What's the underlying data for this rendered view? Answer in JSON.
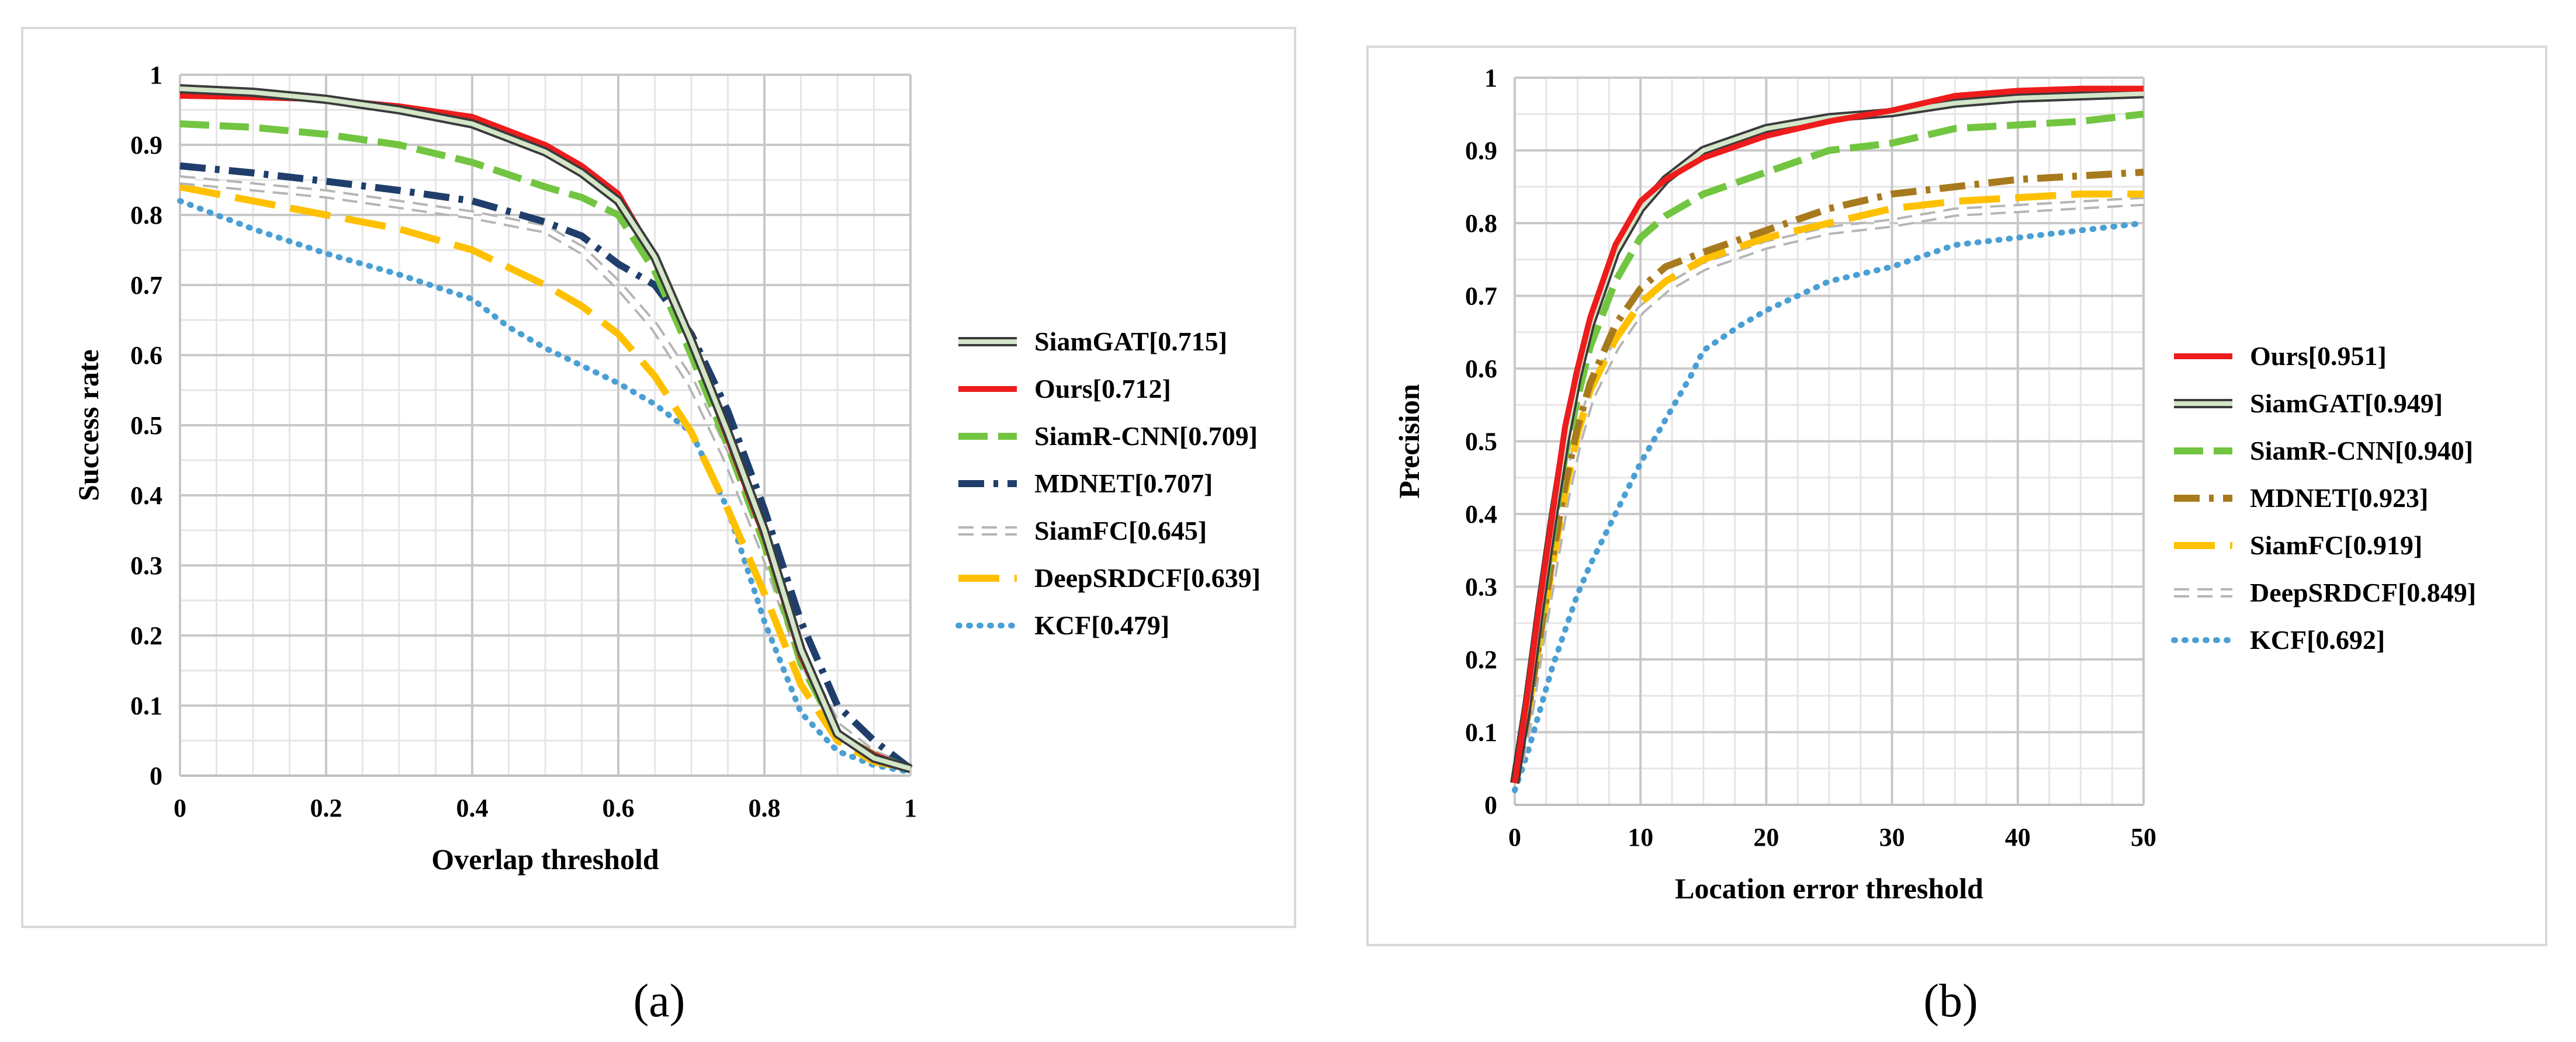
{
  "figure": {
    "panel_labels": [
      "(a)",
      "(b)"
    ]
  },
  "chart_data": [
    {
      "type": "line",
      "panel": "a",
      "xlabel": "Overlap threshold",
      "ylabel": "Success rate",
      "xlim": [
        0,
        1
      ],
      "ylim": [
        0,
        1
      ],
      "xticks": [
        0,
        0.2,
        0.4,
        0.6,
        0.8,
        1
      ],
      "xtick_labels": [
        "0",
        "0.2",
        "0.4",
        "0.6",
        "0.8",
        "1"
      ],
      "yticks": [
        0,
        0.1,
        0.2,
        0.3,
        0.4,
        0.5,
        0.6,
        0.7,
        0.8,
        0.9,
        1
      ],
      "ytick_labels": [
        "0",
        "0.1",
        "0.2",
        "0.3",
        "0.4",
        "0.5",
        "0.6",
        "0.7",
        "0.8",
        "0.9",
        "1"
      ],
      "grid": true,
      "legend_position": "right",
      "series": [
        {
          "name": "SiamGAT[0.715]",
          "style": "double",
          "color": "#3b3b3b",
          "fill": "#d3e6c8",
          "x": [
            0,
            0.1,
            0.2,
            0.3,
            0.4,
            0.5,
            0.55,
            0.6,
            0.65,
            0.7,
            0.75,
            0.8,
            0.85,
            0.9,
            0.95,
            1.0
          ],
          "y": [
            0.98,
            0.975,
            0.965,
            0.95,
            0.93,
            0.89,
            0.86,
            0.82,
            0.74,
            0.62,
            0.49,
            0.35,
            0.18,
            0.06,
            0.025,
            0.01
          ]
        },
        {
          "name": "Ours[0.712]",
          "style": "solid",
          "color": "#ee1c1c",
          "x": [
            0,
            0.1,
            0.2,
            0.3,
            0.4,
            0.5,
            0.55,
            0.6,
            0.65,
            0.7,
            0.75,
            0.8,
            0.85,
            0.9,
            0.95,
            1.0
          ],
          "y": [
            0.97,
            0.968,
            0.965,
            0.955,
            0.94,
            0.9,
            0.87,
            0.83,
            0.74,
            0.62,
            0.48,
            0.34,
            0.17,
            0.06,
            0.03,
            0.01
          ]
        },
        {
          "name": "SiamR-CNN[0.709]",
          "style": "dashed",
          "color": "#72c540",
          "x": [
            0,
            0.1,
            0.2,
            0.3,
            0.4,
            0.5,
            0.55,
            0.6,
            0.65,
            0.7,
            0.75,
            0.8,
            0.85,
            0.9,
            0.95,
            1.0
          ],
          "y": [
            0.93,
            0.925,
            0.915,
            0.9,
            0.875,
            0.84,
            0.825,
            0.8,
            0.72,
            0.6,
            0.47,
            0.33,
            0.16,
            0.06,
            0.03,
            0.01
          ]
        },
        {
          "name": "MDNET[0.707]",
          "style": "dashdot",
          "color": "#1f3e6b",
          "x": [
            0,
            0.1,
            0.2,
            0.3,
            0.4,
            0.5,
            0.55,
            0.6,
            0.65,
            0.7,
            0.75,
            0.8,
            0.85,
            0.9,
            0.95,
            1.0
          ],
          "y": [
            0.87,
            0.86,
            0.848,
            0.835,
            0.82,
            0.79,
            0.77,
            0.73,
            0.7,
            0.63,
            0.52,
            0.38,
            0.22,
            0.1,
            0.05,
            0.01
          ]
        },
        {
          "name": "SiamFC[0.645]",
          "style": "double-dashed",
          "color": "#b5b5b5",
          "fill": "#ffffff",
          "x": [
            0,
            0.1,
            0.2,
            0.3,
            0.4,
            0.5,
            0.55,
            0.6,
            0.65,
            0.7,
            0.75,
            0.8,
            0.85,
            0.9,
            0.95,
            1.0
          ],
          "y": [
            0.85,
            0.84,
            0.83,
            0.815,
            0.8,
            0.78,
            0.75,
            0.7,
            0.64,
            0.56,
            0.45,
            0.32,
            0.17,
            0.07,
            0.03,
            0.01
          ]
        },
        {
          "name": "DeepSRDCF[0.639]",
          "style": "long-dash",
          "color": "#ffc000",
          "x": [
            0,
            0.1,
            0.2,
            0.3,
            0.4,
            0.5,
            0.55,
            0.6,
            0.65,
            0.7,
            0.75,
            0.8,
            0.85,
            0.9,
            0.95,
            1.0
          ],
          "y": [
            0.84,
            0.82,
            0.8,
            0.78,
            0.75,
            0.7,
            0.67,
            0.63,
            0.57,
            0.49,
            0.38,
            0.26,
            0.13,
            0.05,
            0.02,
            0.01
          ]
        },
        {
          "name": "KCF[0.479]",
          "style": "dotted",
          "color": "#4a9fd4",
          "x": [
            0,
            0.1,
            0.2,
            0.3,
            0.4,
            0.45,
            0.5,
            0.55,
            0.6,
            0.65,
            0.7,
            0.75,
            0.8,
            0.85,
            0.9,
            0.95,
            1.0
          ],
          "y": [
            0.82,
            0.78,
            0.745,
            0.715,
            0.68,
            0.64,
            0.61,
            0.585,
            0.56,
            0.53,
            0.49,
            0.38,
            0.22,
            0.09,
            0.035,
            0.015,
            0.005
          ]
        }
      ]
    },
    {
      "type": "line",
      "panel": "b",
      "xlabel": "Location error threshold",
      "ylabel": "Precision",
      "xlim": [
        0,
        50
      ],
      "ylim": [
        0,
        1
      ],
      "xticks": [
        0,
        10,
        20,
        30,
        40,
        50
      ],
      "xtick_labels": [
        "0",
        "10",
        "20",
        "30",
        "40",
        "50"
      ],
      "yticks": [
        0,
        0.1,
        0.2,
        0.3,
        0.4,
        0.5,
        0.6,
        0.7,
        0.8,
        0.9,
        1
      ],
      "ytick_labels": [
        "0",
        "0.1",
        "0.2",
        "0.3",
        "0.4",
        "0.5",
        "0.6",
        "0.7",
        "0.8",
        "0.9",
        "1"
      ],
      "grid": true,
      "legend_position": "right",
      "series": [
        {
          "name": "Ours[0.951]",
          "style": "solid",
          "color": "#ee1c1c",
          "x": [
            0,
            1,
            2,
            3,
            4,
            5,
            6,
            8,
            10,
            12,
            15,
            20,
            25,
            30,
            35,
            40,
            45,
            50
          ],
          "y": [
            0.03,
            0.15,
            0.28,
            0.4,
            0.52,
            0.6,
            0.67,
            0.77,
            0.83,
            0.86,
            0.89,
            0.92,
            0.94,
            0.955,
            0.975,
            0.982,
            0.985,
            0.985
          ]
        },
        {
          "name": "SiamGAT[0.949]",
          "style": "double",
          "color": "#3b3b3b",
          "fill": "#d3e6c8",
          "x": [
            0,
            1,
            2,
            3,
            4,
            5,
            6,
            8,
            10,
            12,
            15,
            20,
            25,
            30,
            35,
            40,
            45,
            50
          ],
          "y": [
            0.03,
            0.14,
            0.27,
            0.39,
            0.5,
            0.59,
            0.66,
            0.76,
            0.82,
            0.86,
            0.9,
            0.93,
            0.945,
            0.952,
            0.965,
            0.972,
            0.975,
            0.978
          ]
        },
        {
          "name": "SiamR-CNN[0.940]",
          "style": "dashed",
          "color": "#72c540",
          "x": [
            0,
            1,
            2,
            3,
            4,
            5,
            6,
            8,
            10,
            12,
            15,
            20,
            25,
            30,
            35,
            40,
            45,
            50
          ],
          "y": [
            0.03,
            0.13,
            0.25,
            0.37,
            0.48,
            0.56,
            0.63,
            0.72,
            0.78,
            0.81,
            0.84,
            0.87,
            0.9,
            0.91,
            0.93,
            0.935,
            0.94,
            0.95
          ]
        },
        {
          "name": "MDNET[0.923]",
          "style": "dashdot",
          "color": "#a87a1e",
          "x": [
            0,
            1,
            2,
            3,
            4,
            5,
            6,
            8,
            10,
            12,
            15,
            20,
            25,
            30,
            35,
            40,
            45,
            50
          ],
          "y": [
            0.03,
            0.12,
            0.23,
            0.34,
            0.44,
            0.52,
            0.58,
            0.66,
            0.71,
            0.74,
            0.76,
            0.79,
            0.82,
            0.84,
            0.85,
            0.86,
            0.865,
            0.87
          ]
        },
        {
          "name": "SiamFC[0.919]",
          "style": "long-dash",
          "color": "#ffc000",
          "x": [
            0,
            1,
            2,
            3,
            4,
            5,
            6,
            8,
            10,
            12,
            15,
            20,
            25,
            30,
            35,
            40,
            45,
            50
          ],
          "y": [
            0.03,
            0.12,
            0.23,
            0.33,
            0.43,
            0.51,
            0.57,
            0.64,
            0.69,
            0.72,
            0.75,
            0.78,
            0.8,
            0.82,
            0.83,
            0.835,
            0.84,
            0.84
          ]
        },
        {
          "name": "DeepSRDCF[0.849]",
          "style": "double-dashed",
          "color": "#b5b5b5",
          "fill": "#ffffff",
          "x": [
            0,
            1,
            2,
            3,
            4,
            5,
            6,
            8,
            10,
            12,
            15,
            20,
            25,
            30,
            35,
            40,
            45,
            50
          ],
          "y": [
            0.03,
            0.11,
            0.22,
            0.32,
            0.42,
            0.5,
            0.56,
            0.63,
            0.68,
            0.71,
            0.74,
            0.77,
            0.79,
            0.8,
            0.815,
            0.82,
            0.825,
            0.83
          ]
        },
        {
          "name": "KCF[0.692]",
          "style": "dotted",
          "color": "#4a9fd4",
          "x": [
            0,
            1,
            2,
            3,
            4,
            5,
            6,
            8,
            10,
            12,
            14,
            15,
            18,
            20,
            25,
            30,
            35,
            40,
            45,
            50
          ],
          "y": [
            0.02,
            0.07,
            0.13,
            0.19,
            0.24,
            0.29,
            0.33,
            0.4,
            0.47,
            0.53,
            0.59,
            0.625,
            0.66,
            0.68,
            0.72,
            0.74,
            0.77,
            0.78,
            0.79,
            0.8
          ]
        }
      ]
    }
  ]
}
